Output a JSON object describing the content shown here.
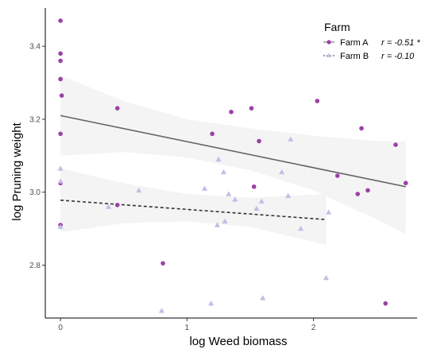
{
  "chart_data": {
    "type": "scatter",
    "xlabel": "log Weed biomass",
    "ylabel": "log Pruning weight",
    "xlim": [
      -0.12,
      2.82
    ],
    "ylim": [
      2.655,
      3.505
    ],
    "xticks": [
      0,
      1,
      2
    ],
    "xtick_labels": [
      "0",
      "1",
      "2"
    ],
    "yticks": [
      2.8,
      3.0,
      3.2,
      3.4
    ],
    "ytick_labels": [
      "2.8",
      "3.0",
      "3.2",
      "3.4"
    ],
    "grid": false,
    "legend": {
      "title": "Farm",
      "position": "top-right"
    },
    "series": [
      {
        "name": "Farm A",
        "stat": "r = -0.51 *",
        "marker": "circle",
        "color": "#9c3fa8",
        "line_style": "solid",
        "line_color": "#666666",
        "fit": {
          "x": [
            0.0,
            2.73
          ],
          "y": [
            3.21,
            3.015
          ]
        },
        "band": {
          "x": [
            0.0,
            0.5,
            1.0,
            1.5,
            2.0,
            2.5,
            2.73
          ],
          "upper": [
            3.32,
            3.25,
            3.2,
            3.175,
            3.155,
            3.14,
            3.14
          ],
          "lower": [
            3.1,
            3.11,
            3.095,
            3.06,
            3.005,
            2.925,
            2.885
          ]
        },
        "points": [
          {
            "x": 0.0,
            "y": 3.47
          },
          {
            "x": 0.0,
            "y": 3.38
          },
          {
            "x": 0.0,
            "y": 3.36
          },
          {
            "x": 0.0,
            "y": 3.31
          },
          {
            "x": 0.01,
            "y": 3.265
          },
          {
            "x": 0.0,
            "y": 3.16
          },
          {
            "x": 0.0,
            "y": 3.025
          },
          {
            "x": 0.0,
            "y": 2.91
          },
          {
            "x": 0.45,
            "y": 3.23
          },
          {
            "x": 0.45,
            "y": 2.965
          },
          {
            "x": 0.81,
            "y": 2.805
          },
          {
            "x": 1.2,
            "y": 3.16
          },
          {
            "x": 1.35,
            "y": 3.22
          },
          {
            "x": 1.51,
            "y": 3.23
          },
          {
            "x": 1.53,
            "y": 3.015
          },
          {
            "x": 1.57,
            "y": 3.14
          },
          {
            "x": 2.03,
            "y": 3.25
          },
          {
            "x": 2.19,
            "y": 3.045
          },
          {
            "x": 2.35,
            "y": 2.995
          },
          {
            "x": 2.38,
            "y": 3.175
          },
          {
            "x": 2.43,
            "y": 3.005
          },
          {
            "x": 2.57,
            "y": 2.695
          },
          {
            "x": 2.65,
            "y": 3.13
          },
          {
            "x": 2.73,
            "y": 3.025
          }
        ]
      },
      {
        "name": "Farm B",
        "stat": "r = -0.10",
        "marker": "triangle",
        "color": "#c5bde6",
        "line_style": "dashed",
        "line_color": "#333333",
        "fit": {
          "x": [
            0.0,
            2.1
          ],
          "y": [
            2.978,
            2.925
          ]
        },
        "band": {
          "x": [
            0.0,
            0.5,
            1.0,
            1.5,
            2.1
          ],
          "upper": [
            3.065,
            3.025,
            2.995,
            2.985,
            2.995
          ],
          "lower": [
            2.89,
            2.915,
            2.92,
            2.905,
            2.855
          ]
        },
        "points": [
          {
            "x": 0.0,
            "y": 3.065
          },
          {
            "x": 0.0,
            "y": 3.03
          },
          {
            "x": 0.0,
            "y": 2.905
          },
          {
            "x": 0.38,
            "y": 2.96
          },
          {
            "x": 0.62,
            "y": 3.005
          },
          {
            "x": 0.8,
            "y": 2.675
          },
          {
            "x": 1.14,
            "y": 3.01
          },
          {
            "x": 1.19,
            "y": 2.695
          },
          {
            "x": 1.24,
            "y": 2.91
          },
          {
            "x": 1.25,
            "y": 3.09
          },
          {
            "x": 1.29,
            "y": 3.055
          },
          {
            "x": 1.3,
            "y": 2.92
          },
          {
            "x": 1.33,
            "y": 2.995
          },
          {
            "x": 1.38,
            "y": 2.98
          },
          {
            "x": 1.55,
            "y": 2.955
          },
          {
            "x": 1.59,
            "y": 2.975
          },
          {
            "x": 1.6,
            "y": 2.71
          },
          {
            "x": 1.75,
            "y": 3.055
          },
          {
            "x": 1.8,
            "y": 2.99
          },
          {
            "x": 1.82,
            "y": 3.145
          },
          {
            "x": 1.9,
            "y": 2.9
          },
          {
            "x": 2.1,
            "y": 2.765
          },
          {
            "x": 2.12,
            "y": 2.945
          }
        ]
      }
    ]
  }
}
